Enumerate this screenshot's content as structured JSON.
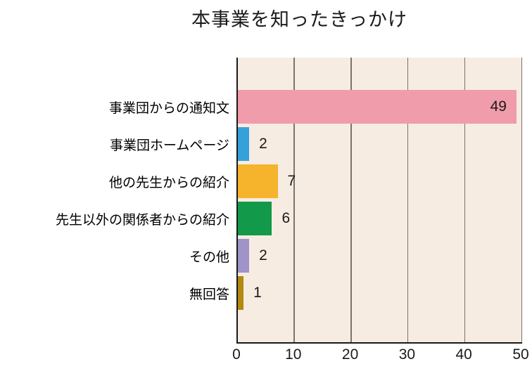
{
  "chart_data": {
    "type": "bar",
    "orientation": "horizontal",
    "title": "本事業を知ったきっかけ",
    "categories": [
      "事業団からの通知文",
      "事業団ホームページ",
      "他の先生からの紹介",
      "先生以外の関係者からの紹介",
      "その他",
      "無回答"
    ],
    "values": [
      49,
      2,
      7,
      6,
      2,
      1
    ],
    "colors": [
      "#f09cab",
      "#35a1db",
      "#f6b32c",
      "#12994a",
      "#9f93c8",
      "#b3890f"
    ],
    "xlabel": "",
    "ylabel": "",
    "xlim": [
      0,
      50
    ],
    "xticks": [
      0,
      10,
      20,
      30,
      40,
      50
    ],
    "grid": "vertical",
    "plot_bg": "#f7ece2",
    "gridline_color": "#79746b",
    "axis_color": "#1a1a1a",
    "value_labels": true,
    "legend": "none"
  }
}
